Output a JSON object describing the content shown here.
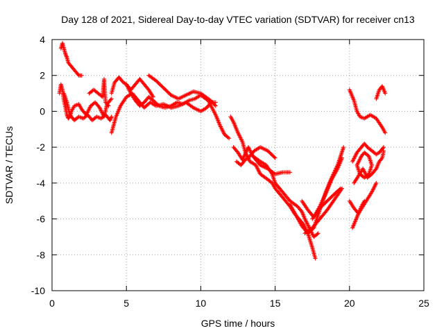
{
  "chart_data": {
    "type": "scatter",
    "title": "Day 128 of 2021, Sidereal Day-to-day VTEC variation (SDTVAR) for receiver cn13",
    "xlabel": "GPS time / hours",
    "ylabel": "SDTVAR / TECUs",
    "xlim": [
      0,
      25
    ],
    "ylim": [
      -10,
      4
    ],
    "xticks": [
      0,
      5,
      10,
      15,
      20,
      25
    ],
    "yticks": [
      -10,
      -8,
      -6,
      -4,
      -2,
      0,
      2,
      4
    ],
    "grid": true,
    "marker": "+",
    "series": [
      {
        "name": "SDTVAR",
        "color": "#ff0000",
        "x": [
          0.6,
          0.7,
          0.8,
          0.9,
          1.0,
          1.1,
          1.3,
          1.5,
          1.7,
          1.8,
          2.0
        ],
        "y": [
          3.5,
          3.8,
          3.5,
          3.2,
          3.0,
          2.7,
          2.5,
          2.3,
          2.1,
          2.0,
          2.0
        ]
      },
      {
        "name": "SDTVAR",
        "color": "#ff0000",
        "x": [
          0.5,
          0.6,
          0.7,
          0.8,
          0.9,
          1.0,
          1.1,
          1.2,
          1.3,
          1.5,
          1.8,
          2.0,
          2.3,
          2.6,
          2.9,
          3.2,
          3.5,
          3.7,
          4.0
        ],
        "y": [
          1.0,
          1.5,
          1.2,
          0.6,
          0.2,
          -0.2,
          -0.4,
          -0.3,
          0.0,
          0.3,
          0.4,
          0.1,
          -0.2,
          0.3,
          0.5,
          0.2,
          -0.3,
          0.4,
          0.7
        ]
      },
      {
        "name": "SDTVAR",
        "color": "#ff0000",
        "x": [
          0.8,
          1.0,
          1.2,
          1.5,
          1.8,
          2.1,
          2.4,
          2.7,
          3.0,
          3.3,
          3.6,
          3.9,
          4.0
        ],
        "y": [
          1.0,
          0.5,
          -0.2,
          -0.5,
          -0.3,
          -0.4,
          -0.2,
          -0.5,
          -0.3,
          -0.4,
          -0.2,
          -0.5,
          -0.3
        ]
      },
      {
        "name": "SDTVAR",
        "color": "#ff0000",
        "x": [
          2.5,
          2.8,
          3.1,
          3.4,
          3.5,
          3.6,
          3.8
        ],
        "y": [
          1.0,
          1.2,
          1.0,
          0.8,
          1.8,
          0.5,
          0.3
        ]
      },
      {
        "name": "SDTVAR",
        "color": "#ff0000",
        "x": [
          4.0,
          4.3,
          4.6,
          5.0,
          5.4,
          5.8,
          6.2,
          6.6,
          7.0,
          7.5,
          8.0,
          8.5,
          9.0,
          9.5,
          10.0,
          10.4,
          10.7,
          11.0
        ],
        "y": [
          -1.2,
          -0.3,
          0.3,
          0.8,
          1.0,
          0.6,
          0.2,
          0.5,
          0.3,
          0.4,
          0.2,
          0.3,
          0.5,
          0.2,
          0.0,
          0.2,
          0.5,
          0.5
        ]
      },
      {
        "name": "SDTVAR",
        "color": "#ff0000",
        "x": [
          4.0,
          4.2,
          4.5,
          4.8,
          5.0,
          5.3,
          5.6,
          5.9,
          6.2,
          6.5,
          6.8
        ],
        "y": [
          1.0,
          1.6,
          1.9,
          1.6,
          1.5,
          1.2,
          1.5,
          1.8,
          1.5,
          1.2,
          0.8
        ]
      },
      {
        "name": "SDTVAR",
        "color": "#ff0000",
        "x": [
          5.0,
          5.3,
          5.6,
          5.9,
          6.2,
          6.5,
          6.8,
          7.2,
          7.6,
          8.0,
          8.4,
          8.8,
          9.2,
          9.6,
          10.0,
          10.5,
          11.0,
          11.3,
          11.6,
          11.9
        ],
        "y": [
          1.5,
          1.0,
          0.6,
          0.3,
          0.5,
          0.8,
          0.6,
          0.3,
          0.2,
          0.3,
          0.5,
          0.4,
          0.6,
          0.7,
          0.9,
          0.6,
          -0.2,
          -0.8,
          -1.3,
          -1.5
        ]
      },
      {
        "name": "SDTVAR",
        "color": "#ff0000",
        "x": [
          6.5,
          7.0,
          7.5,
          8.0,
          8.5,
          9.0,
          9.5,
          10.0,
          10.5,
          10.8,
          11.0
        ],
        "y": [
          2.0,
          1.7,
          1.3,
          0.9,
          0.7,
          0.9,
          1.1,
          1.0,
          0.7,
          0.5,
          0.3
        ]
      },
      {
        "name": "SDTVAR",
        "color": "#ff0000",
        "x": [
          12.0,
          12.2,
          12.5,
          12.8,
          13.0,
          13.3,
          13.7,
          14.0,
          14.5,
          14.8,
          15.0,
          15.5,
          16.0,
          16.3,
          16.6,
          16.9,
          17.2,
          17.5,
          17.7
        ],
        "y": [
          -0.3,
          -0.6,
          -1.2,
          -1.7,
          -2.3,
          -2.8,
          -3.0,
          -3.5,
          -3.8,
          -4.0,
          -4.3,
          -4.8,
          -5.3,
          -5.7,
          -6.0,
          -6.3,
          -6.8,
          -7.6,
          -8.2
        ]
      },
      {
        "name": "SDTVAR",
        "color": "#ff0000",
        "x": [
          12.2,
          12.5,
          12.8,
          13.2,
          13.5,
          14.0,
          14.4,
          14.8,
          15.0,
          15.5,
          16.0,
          16.5,
          16.8,
          17.0,
          17.3,
          17.6,
          17.9
        ],
        "y": [
          -2.0,
          -2.3,
          -2.7,
          -2.0,
          -2.5,
          -2.8,
          -3.0,
          -3.5,
          -4.0,
          -4.5,
          -5.0,
          -5.3,
          -5.6,
          -6.0,
          -6.5,
          -7.0,
          -6.8
        ]
      },
      {
        "name": "SDTVAR",
        "color": "#ff0000",
        "x": [
          12.4,
          12.7,
          13.0,
          13.3,
          13.6,
          14.0,
          14.5,
          15.0
        ],
        "y": [
          -2.8,
          -3.0,
          -2.7,
          -2.5,
          -2.2,
          -2.0,
          -2.2,
          -2.6
        ]
      },
      {
        "name": "SDTVAR",
        "color": "#ff0000",
        "x": [
          13.5,
          14.0,
          14.5,
          15.0,
          15.5,
          16.0
        ],
        "y": [
          -2.5,
          -3.0,
          -3.2,
          -3.5,
          -3.4,
          -3.4
        ]
      },
      {
        "name": "SDTVAR",
        "color": "#ff0000",
        "x": [
          16.0,
          16.4,
          16.8,
          17.2,
          17.6,
          18.0,
          18.4,
          18.8,
          19.2,
          19.6
        ],
        "y": [
          -5.2,
          -5.8,
          -6.4,
          -6.8,
          -6.5,
          -5.5,
          -4.5,
          -3.7,
          -3.0,
          -2.0
        ]
      },
      {
        "name": "SDTVAR",
        "color": "#ff0000",
        "x": [
          16.8,
          17.2,
          17.6,
          18.0,
          18.4,
          18.8,
          19.2,
          19.5
        ],
        "y": [
          -5.0,
          -5.5,
          -5.9,
          -5.3,
          -4.6,
          -3.8,
          -3.2,
          -2.6
        ]
      },
      {
        "name": "SDTVAR",
        "color": "#ff0000",
        "x": [
          17.0,
          17.5,
          18.0,
          18.5,
          19.0,
          19.5
        ],
        "y": [
          -6.8,
          -6.5,
          -6.0,
          -5.5,
          -4.9,
          -4.3
        ]
      },
      {
        "name": "SDTVAR",
        "color": "#ff0000",
        "x": [
          17.5,
          18.0,
          18.5,
          19.0,
          19.4
        ],
        "y": [
          -6.0,
          -5.4,
          -5.0,
          -4.6,
          -4.3
        ]
      },
      {
        "name": "SDTVAR",
        "color": "#ff0000",
        "x": [
          20.0,
          20.3,
          20.5,
          20.7,
          21.0,
          21.4,
          21.8,
          22.2,
          22.4
        ],
        "y": [
          1.2,
          0.6,
          0.0,
          -0.3,
          -0.4,
          -0.2,
          -0.4,
          -0.9,
          -1.2
        ]
      },
      {
        "name": "SDTVAR",
        "color": "#ff0000",
        "x": [
          21.8,
          22.0,
          22.2,
          22.4
        ],
        "y": [
          0.7,
          1.2,
          1.4,
          1.0
        ]
      },
      {
        "name": "SDTVAR",
        "color": "#ff0000",
        "x": [
          20.2,
          20.5,
          20.8,
          21.0,
          21.2,
          21.5,
          21.8,
          22.0,
          22.2,
          22.3
        ],
        "y": [
          -2.8,
          -2.3,
          -2.0,
          -1.8,
          -2.0,
          -2.2,
          -2.4,
          -2.3,
          -2.1,
          -2.0
        ]
      },
      {
        "name": "SDTVAR",
        "color": "#ff0000",
        "x": [
          20.3,
          20.6,
          20.9,
          21.2,
          21.5,
          21.8,
          22.0,
          22.2,
          22.3
        ],
        "y": [
          -4.0,
          -3.6,
          -3.2,
          -3.7,
          -3.5,
          -3.2,
          -2.8,
          -2.6,
          -2.2
        ]
      },
      {
        "name": "SDTVAR",
        "color": "#ff0000",
        "x": [
          20.5,
          20.8,
          21.0,
          21.3,
          21.5,
          21.3,
          21.0,
          20.7,
          20.5
        ],
        "y": [
          -3.0,
          -2.5,
          -2.3,
          -2.5,
          -3.0,
          -3.5,
          -3.7,
          -3.5,
          -3.0
        ]
      },
      {
        "name": "SDTVAR",
        "color": "#ff0000",
        "x": [
          20.0,
          20.3,
          20.6,
          20.9,
          21.2,
          21.5,
          21.8
        ],
        "y": [
          -5.0,
          -5.4,
          -5.7,
          -5.3,
          -4.9,
          -4.5,
          -4.0
        ]
      },
      {
        "name": "SDTVAR",
        "color": "#ff0000",
        "x": [
          20.2,
          20.4,
          20.6,
          20.8,
          21.0
        ],
        "y": [
          -6.5,
          -6.1,
          -5.7,
          -5.3,
          -5.0
        ]
      }
    ]
  }
}
